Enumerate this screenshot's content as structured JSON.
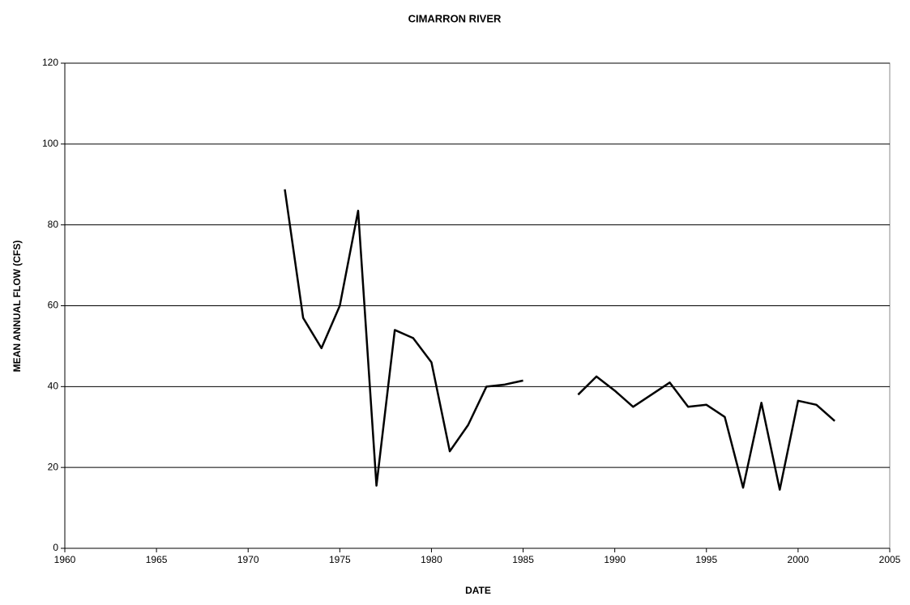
{
  "chart_data": {
    "type": "line",
    "title": "CIMARRON RIVER",
    "xlabel": "DATE",
    "ylabel": "MEAN ANNUAL FLOW (CFS)",
    "x": [
      1972,
      1973,
      1974,
      1975,
      1976,
      1977,
      1978,
      1979,
      1980,
      1981,
      1982,
      1983,
      1984,
      1985,
      1986,
      1987,
      1988,
      1989,
      1990,
      1991,
      1992,
      1993,
      1994,
      1995,
      1996,
      1997,
      1998,
      1999,
      2000,
      2001,
      2002
    ],
    "series": [
      {
        "name": "Mean annual flow",
        "color": "#000000",
        "values": [
          88.8,
          57,
          49.5,
          60,
          83.5,
          15.5,
          54,
          52,
          46,
          24,
          30.5,
          40,
          40.5,
          41.5,
          null,
          null,
          38,
          42.5,
          39,
          35,
          38,
          41,
          35,
          35.5,
          32.5,
          15,
          36,
          14.5,
          36.5,
          35.5,
          31.5
        ]
      }
    ],
    "xlim": [
      1960,
      2005
    ],
    "xticks": [
      1960,
      1965,
      1970,
      1975,
      1980,
      1985,
      1990,
      1995,
      2000,
      2005
    ],
    "ylim": [
      0,
      120
    ],
    "yticks": [
      0,
      20,
      40,
      60,
      80,
      100,
      120
    ],
    "grid": true
  }
}
